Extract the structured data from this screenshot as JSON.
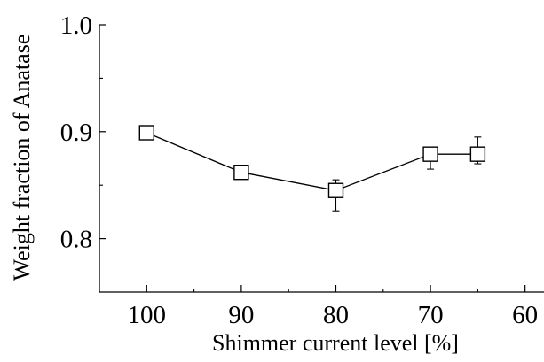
{
  "chart_data": {
    "type": "scatter",
    "title": "",
    "xlabel": "Shimmer current level [%]",
    "ylabel": "Weight fraction of Anatase",
    "xlim": [
      105,
      58
    ],
    "ylim": [
      0.75,
      1.0
    ],
    "x_reversed": true,
    "grid": false,
    "legend": "none",
    "x_ticks": [
      100,
      90,
      80,
      70,
      60
    ],
    "x_tick_labels": [
      "100",
      "90",
      "80",
      "70",
      "60"
    ],
    "y_ticks": [
      0.8,
      0.9,
      1.0
    ],
    "y_tick_labels": [
      "0.8",
      "0.9",
      "1.0"
    ],
    "marker": "open-square",
    "line_color": "#000000",
    "series": [
      {
        "x": [
          100,
          90,
          80,
          70,
          65
        ],
        "y": [
          0.899,
          0.862,
          0.845,
          0.879,
          0.879
        ],
        "y_err_low": [
          0.001,
          0.002,
          0.019,
          0.014,
          0.009
        ],
        "y_err_high": [
          0.001,
          0.006,
          0.01,
          0.006,
          0.016
        ]
      }
    ]
  }
}
